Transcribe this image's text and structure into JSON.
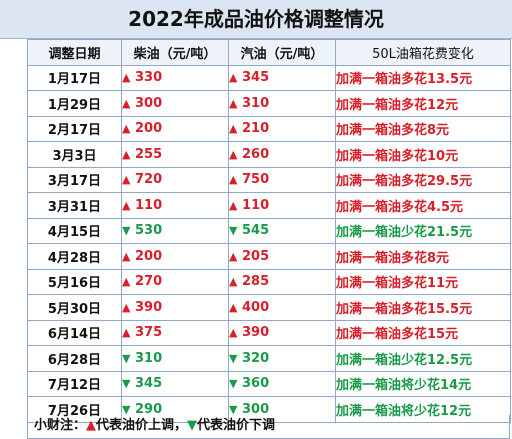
{
  "title": "2022年成品油价格调整情况",
  "headers": {
    "date": "调整日期",
    "diesel": "柴油（元/吨）",
    "gasoline": "汽油（元/吨）",
    "cost": "50L油箱花费变化"
  },
  "colors": {
    "up": "#d7202b",
    "down": "#1a9a4a",
    "header_bg": "#dce6f2",
    "grid": "#8fa9c6"
  },
  "icons": {
    "up": "▲",
    "down": "▼"
  },
  "rows": [
    {
      "date": "1月17日",
      "dir": "up",
      "diesel": "330",
      "gasoline": "345",
      "cost": "加满一箱油多花13.5元"
    },
    {
      "date": "1月29日",
      "dir": "up",
      "diesel": "300",
      "gasoline": "310",
      "cost": "加满一箱油多花12元"
    },
    {
      "date": "2月17日",
      "dir": "up",
      "diesel": "200",
      "gasoline": "210",
      "cost": "加满一箱油多花8元"
    },
    {
      "date": "3月3日",
      "dir": "up",
      "diesel": "255",
      "gasoline": "260",
      "cost": "加满一箱油多花10元"
    },
    {
      "date": "3月17日",
      "dir": "up",
      "diesel": "720",
      "gasoline": "750",
      "cost": "加满一箱油多花29.5元"
    },
    {
      "date": "3月31日",
      "dir": "up",
      "diesel": "110",
      "gasoline": "110",
      "cost": "加满一箱油多花4.5元"
    },
    {
      "date": "4月15日",
      "dir": "down",
      "diesel": "530",
      "gasoline": "545",
      "cost": "加满一箱油少花21.5元"
    },
    {
      "date": "4月28日",
      "dir": "up",
      "diesel": "200",
      "gasoline": "205",
      "cost": "加满一箱油多花8元"
    },
    {
      "date": "5月16日",
      "dir": "up",
      "diesel": "270",
      "gasoline": "285",
      "cost": "加满一箱油多花11元"
    },
    {
      "date": "5月30日",
      "dir": "up",
      "diesel": "390",
      "gasoline": "400",
      "cost": "加满一箱油多花15.5元"
    },
    {
      "date": "6月14日",
      "dir": "up",
      "diesel": "375",
      "gasoline": "390",
      "cost": "加满一箱油多花15元"
    },
    {
      "date": "6月28日",
      "dir": "down",
      "diesel": "310",
      "gasoline": "320",
      "cost": "加满一箱油少花12.5元"
    },
    {
      "date": "7月12日",
      "dir": "down",
      "diesel": "345",
      "gasoline": "360",
      "cost": "加满一箱油将少花14元"
    },
    {
      "date": "7月26日",
      "dir": "down",
      "diesel": "290",
      "gasoline": "300",
      "cost": "加满一箱油将少花12元"
    }
  ],
  "footer": {
    "label": "小财注：",
    "up_text": "代表油价上调，",
    "down_text": "代表油价下调"
  }
}
